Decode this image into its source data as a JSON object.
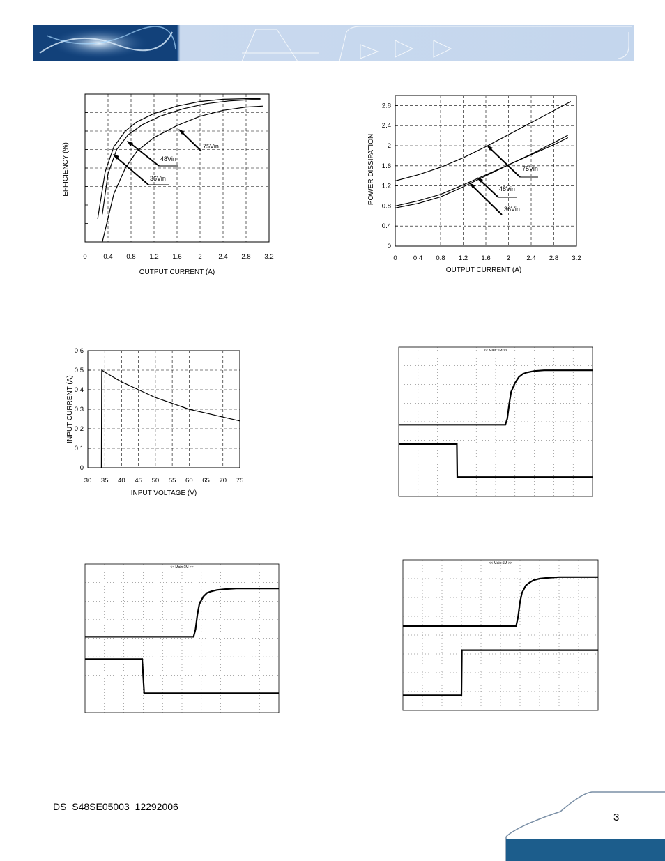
{
  "footer": {
    "doc_id": "DS_S48SE05003_12292006",
    "page_number": "3"
  },
  "colors": {
    "banner_blue": "#1a5fa0",
    "banner_light": "#c9d9ee",
    "footer_blue": "#1c5d8c",
    "scope_trace": "#000000"
  },
  "chart_data": [
    {
      "id": "efficiency",
      "type": "line",
      "xlabel": "OUTPUT CURRENT (A)",
      "ylabel": "EFFICIENCY (%)",
      "xlim": [
        0,
        3.2
      ],
      "x_ticks": [
        "0",
        "0.4",
        "0.8",
        "1.2",
        "1.6",
        "2",
        "2.4",
        "2.8",
        "3.2"
      ],
      "y_tick_count": 8,
      "grid": "dashed",
      "series": [
        {
          "name": "36Vin",
          "x": [
            0.22,
            0.35,
            0.5,
            0.7,
            0.9,
            1.2,
            1.6,
            2.0,
            2.4,
            2.8,
            3.05
          ],
          "y": [
            1.25,
            3.8,
            5.15,
            6.0,
            6.5,
            6.95,
            7.35,
            7.6,
            7.72,
            7.75,
            7.75
          ]
        },
        {
          "name": "48Vin",
          "x": [
            0.3,
            0.4,
            0.55,
            0.75,
            1.0,
            1.3,
            1.7,
            2.1,
            2.5,
            2.9,
            3.05
          ],
          "y": [
            1.5,
            3.7,
            5.0,
            5.8,
            6.35,
            6.8,
            7.2,
            7.48,
            7.63,
            7.7,
            7.7
          ]
        },
        {
          "name": "75Vin",
          "x": [
            0.3,
            0.5,
            0.7,
            0.9,
            1.2,
            1.6,
            2.0,
            2.4,
            2.8,
            3.1
          ],
          "y": [
            0.0,
            2.6,
            4.0,
            4.9,
            5.65,
            6.3,
            6.8,
            7.12,
            7.3,
            7.35
          ]
        }
      ],
      "annotations": [
        "75Vin",
        "48Vin",
        "36Vin"
      ]
    },
    {
      "id": "power-dissipation",
      "type": "line",
      "xlabel": "OUTPUT CURRENT (A)",
      "ylabel": "POWER DISSIPATION",
      "xlim": [
        0,
        3.2
      ],
      "ylim": [
        0,
        3.0
      ],
      "x_ticks": [
        "0",
        "0.4",
        "0.8",
        "1.2",
        "1.6",
        "2",
        "2.4",
        "2.8",
        "3.2"
      ],
      "y_ticks": [
        "0",
        "0.4",
        "0.8",
        "1.2",
        "1.6",
        "2",
        "2.4",
        "2.8"
      ],
      "grid": "dashed",
      "series": [
        {
          "name": "75Vin",
          "x": [
            0,
            0.4,
            0.8,
            1.2,
            1.6,
            2.0,
            2.4,
            2.8,
            3.1
          ],
          "y": [
            1.3,
            1.42,
            1.57,
            1.76,
            1.98,
            2.22,
            2.46,
            2.7,
            2.88
          ]
        },
        {
          "name": "48Vin",
          "x": [
            0,
            0.4,
            0.8,
            1.2,
            1.6,
            2.0,
            2.4,
            2.8,
            3.05
          ],
          "y": [
            0.8,
            0.9,
            1.03,
            1.22,
            1.42,
            1.62,
            1.82,
            2.02,
            2.16
          ]
        },
        {
          "name": "36Vin",
          "x": [
            0,
            0.4,
            0.8,
            1.2,
            1.6,
            2.0,
            2.4,
            2.8,
            3.05
          ],
          "y": [
            0.76,
            0.85,
            0.98,
            1.18,
            1.4,
            1.62,
            1.83,
            2.06,
            2.21
          ]
        }
      ],
      "annotations": [
        "75Vin",
        "48Vin",
        "36Vin"
      ]
    },
    {
      "id": "input-current",
      "type": "line",
      "xlabel": "INPUT VOLTAGE (V)",
      "ylabel": "INPUT CURRENT (A)",
      "xlim": [
        30,
        75
      ],
      "ylim": [
        0,
        0.6
      ],
      "x_ticks": [
        "30",
        "35",
        "40",
        "45",
        "50",
        "55",
        "60",
        "65",
        "70",
        "75"
      ],
      "y_ticks": [
        "0",
        "0.1",
        "0.2",
        "0.3",
        "0.4",
        "0.5",
        "0.6"
      ],
      "grid": "dashed",
      "series": [
        {
          "name": "",
          "x": [
            34,
            34.1,
            35,
            37,
            40,
            45,
            50,
            55,
            60,
            65,
            70,
            75
          ],
          "y": [
            0,
            0.5,
            0.49,
            0.47,
            0.44,
            0.4,
            0.36,
            0.33,
            0.3,
            0.28,
            0.26,
            0.24
          ]
        }
      ]
    },
    {
      "id": "scope-1",
      "type": "line",
      "header": "<< Main:1M >>",
      "xlim": [
        0,
        100
      ],
      "ylim": [
        0,
        100
      ],
      "series": [
        {
          "name": "",
          "x": [
            0,
            55,
            56,
            57,
            58,
            60,
            62,
            64,
            66,
            70,
            75,
            80,
            90,
            100
          ],
          "y": [
            48,
            48,
            52,
            62,
            70,
            76,
            80,
            82,
            83,
            84,
            84.5,
            84.5,
            84.5,
            84.5
          ]
        },
        {
          "name": "",
          "x": [
            0,
            30,
            30.2,
            100
          ],
          "y": [
            35,
            35,
            13,
            13
          ]
        }
      ]
    },
    {
      "id": "scope-2",
      "type": "line",
      "header": "<< Main:1M >>",
      "xlim": [
        0,
        100
      ],
      "ylim": [
        0,
        100
      ],
      "series": [
        {
          "name": "",
          "x": [
            0,
            56,
            57,
            58,
            59,
            61,
            63,
            65,
            68,
            72,
            78,
            85,
            100
          ],
          "y": [
            51,
            51,
            56,
            66,
            73,
            78,
            80.5,
            81.5,
            82.5,
            83,
            83.5,
            83.5,
            83.5
          ]
        },
        {
          "name": "",
          "x": [
            0,
            29.5,
            30.5,
            100
          ],
          "y": [
            36,
            36,
            13,
            13
          ]
        }
      ]
    },
    {
      "id": "scope-3",
      "type": "line",
      "header": "<< Main:1M >>",
      "xlim": [
        0,
        100
      ],
      "ylim": [
        0,
        100
      ],
      "series": [
        {
          "name": "",
          "x": [
            0,
            58,
            59,
            60,
            61,
            63,
            65,
            67,
            70,
            74,
            80,
            88,
            100
          ],
          "y": [
            56,
            56,
            62,
            72,
            78,
            83,
            85,
            86.5,
            87.5,
            88,
            88.5,
            88.5,
            88.5
          ]
        },
        {
          "name": "",
          "x": [
            0,
            30,
            30.2,
            100
          ],
          "y": [
            10,
            10,
            40,
            40
          ]
        }
      ]
    }
  ]
}
